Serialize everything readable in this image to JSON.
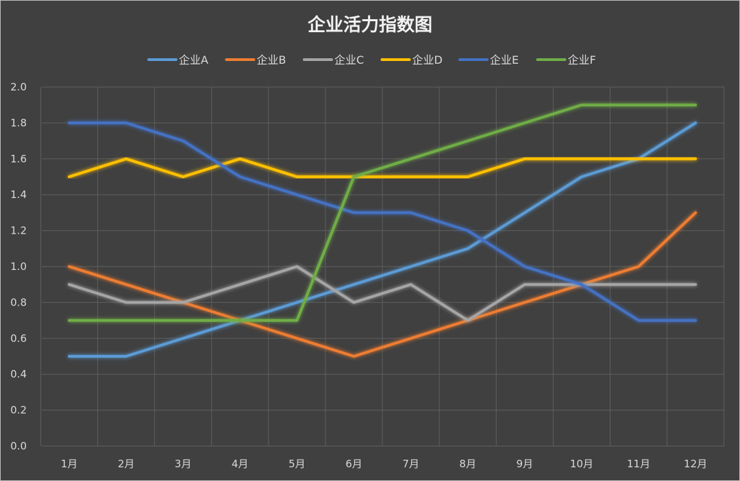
{
  "chart_data": {
    "type": "line",
    "title": "企业活力指数图",
    "xlabel": "",
    "ylabel": "",
    "categories": [
      "1月",
      "2月",
      "3月",
      "4月",
      "5月",
      "6月",
      "7月",
      "8月",
      "9月",
      "10月",
      "11月",
      "12月"
    ],
    "ylim": [
      0,
      2
    ],
    "yticks": [
      "0.0",
      "0.2",
      "0.4",
      "0.6",
      "0.8",
      "1.0",
      "1.2",
      "1.4",
      "1.6",
      "1.8",
      "2.0"
    ],
    "grid": true,
    "legend_position": "top",
    "series": [
      {
        "name": "企业A",
        "color": "#5b9bd5",
        "values": [
          0.5,
          0.5,
          0.6,
          0.7,
          0.8,
          0.9,
          1.0,
          1.1,
          1.3,
          1.5,
          1.6,
          1.8
        ]
      },
      {
        "name": "企业B",
        "color": "#ed7d31",
        "values": [
          1.0,
          0.9,
          0.8,
          0.7,
          0.6,
          0.5,
          0.6,
          0.7,
          0.8,
          0.9,
          1.0,
          1.3
        ]
      },
      {
        "name": "企业C",
        "color": "#a5a5a5",
        "values": [
          0.9,
          0.8,
          0.8,
          0.9,
          1.0,
          0.8,
          0.9,
          0.7,
          0.9,
          0.9,
          0.9,
          0.9
        ]
      },
      {
        "name": "企业D",
        "color": "#ffc000",
        "values": [
          1.5,
          1.6,
          1.5,
          1.6,
          1.5,
          1.5,
          1.5,
          1.5,
          1.6,
          1.6,
          1.6,
          1.6
        ]
      },
      {
        "name": "企业E",
        "color": "#4472c4",
        "values": [
          1.8,
          1.8,
          1.7,
          1.5,
          1.4,
          1.3,
          1.3,
          1.2,
          1.0,
          0.9,
          0.7,
          0.7
        ]
      },
      {
        "name": "企业F",
        "color": "#70ad47",
        "values": [
          0.7,
          0.7,
          0.7,
          0.7,
          0.7,
          1.5,
          1.6,
          1.7,
          1.8,
          1.9,
          1.9,
          1.9
        ]
      }
    ]
  }
}
